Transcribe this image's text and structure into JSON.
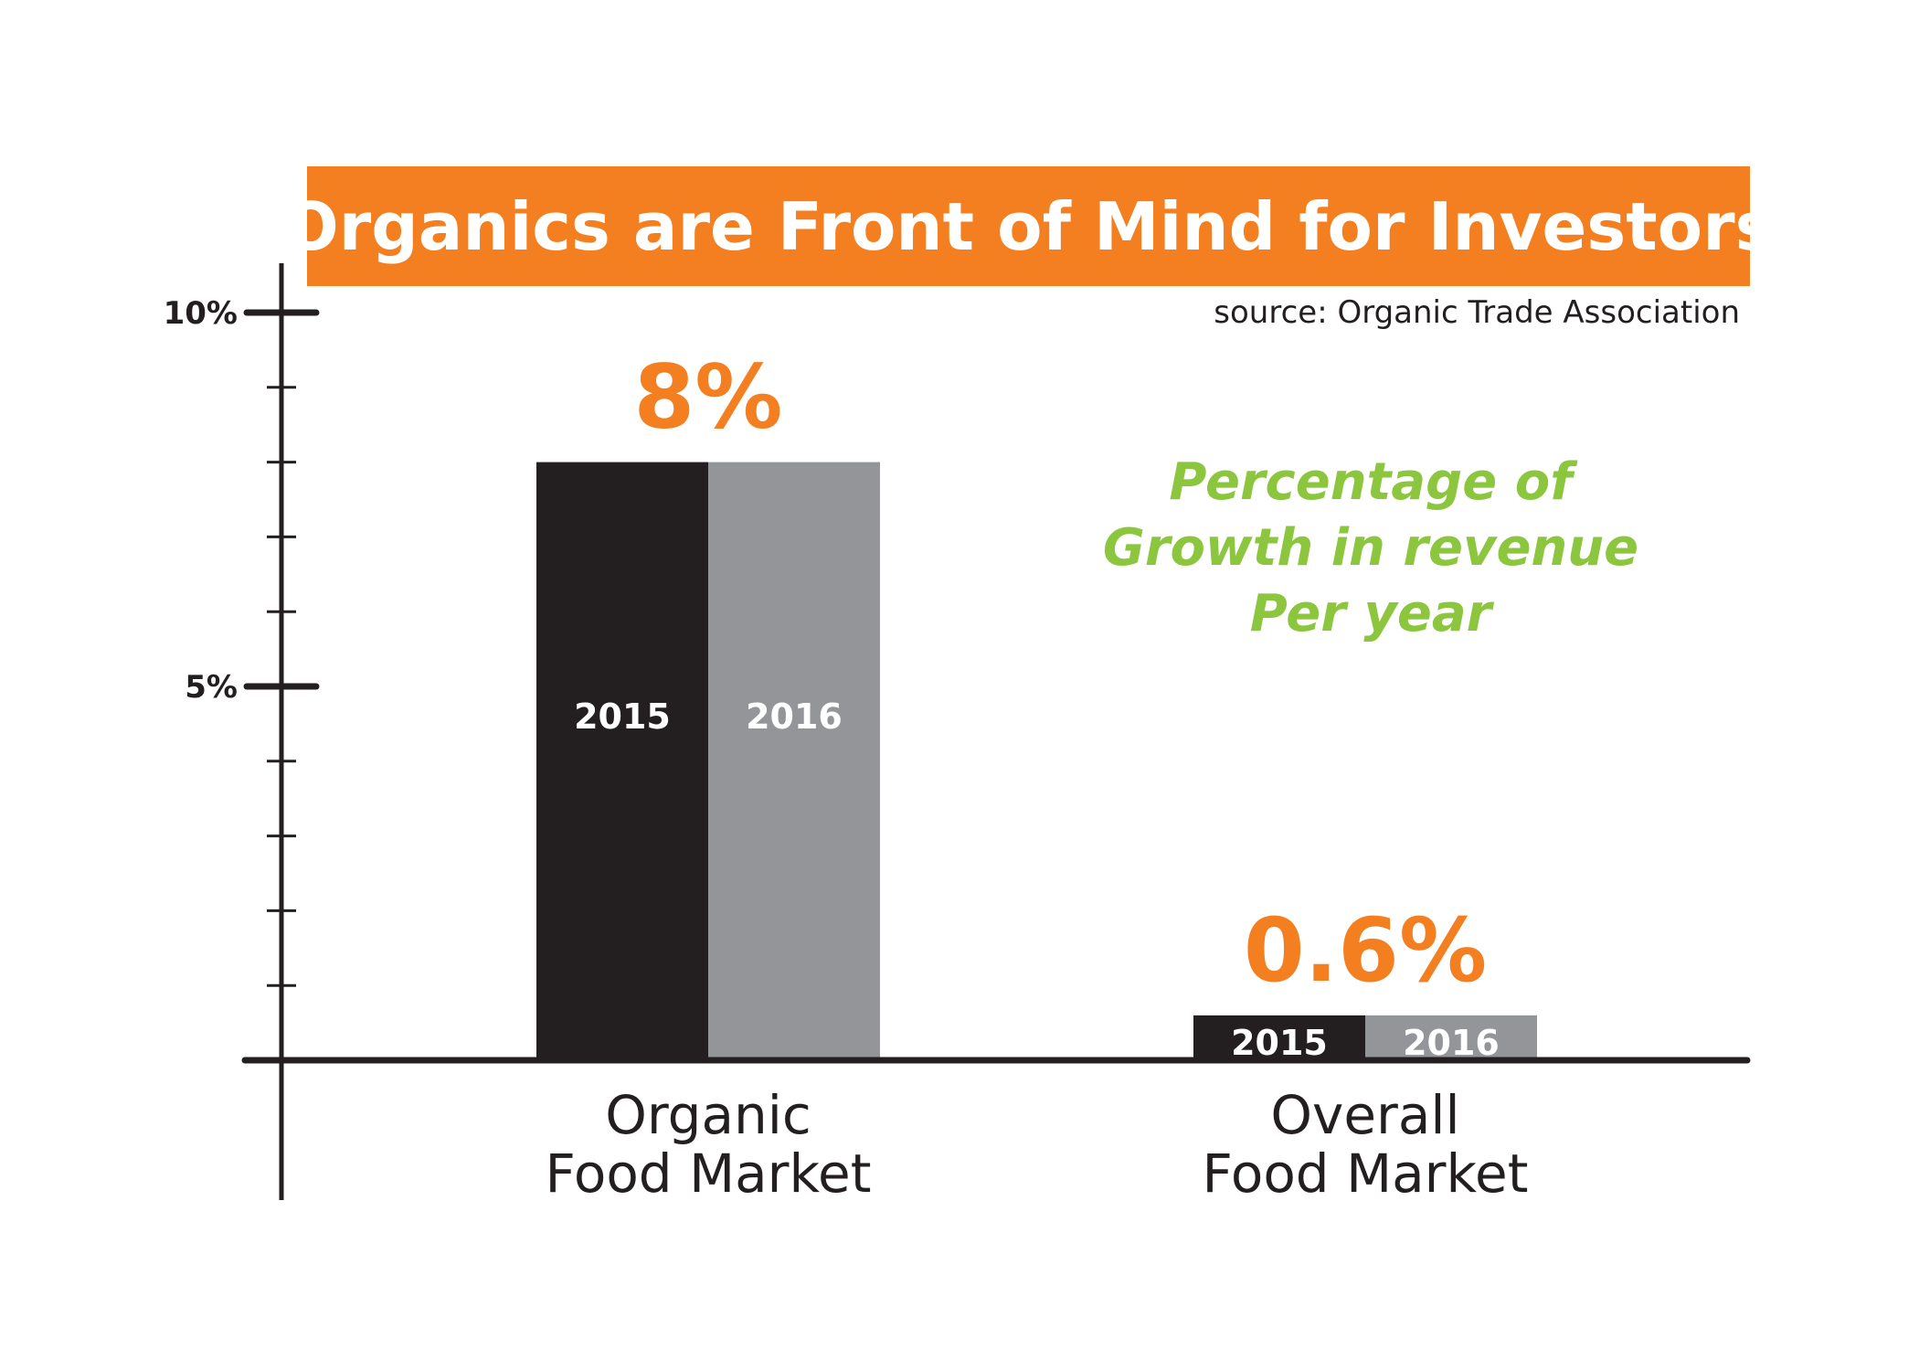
{
  "title": "Organics are Front of Mind for Investors",
  "source": "source: Organic Trade Association",
  "annotation": [
    "Percentage of",
    "Growth in revenue",
    "Per year"
  ],
  "colors": {
    "accent": "#f47f20",
    "green": "#8cc63f",
    "series_2015": "#231f20",
    "series_2016": "#939598",
    "axis": "#231f20"
  },
  "chart_data": {
    "type": "bar",
    "title": "Organics are Front of Mind for Investors",
    "xlabel": "",
    "ylabel": "",
    "ylim": [
      0,
      10
    ],
    "y_ticks": [
      {
        "value": 10,
        "label": "10%"
      },
      {
        "value": 5,
        "label": "5%"
      }
    ],
    "minor_tick_step": 1,
    "categories": [
      {
        "lines": [
          "Organic",
          "Food Market"
        ],
        "value_label": "8%"
      },
      {
        "lines": [
          "Overall",
          "Food Market"
        ],
        "value_label": "0.6%"
      }
    ],
    "series": [
      {
        "name": "2015",
        "values": [
          8,
          0.6
        ]
      },
      {
        "name": "2016",
        "values": [
          8,
          0.6
        ]
      }
    ],
    "grid": false,
    "legend": "none"
  }
}
